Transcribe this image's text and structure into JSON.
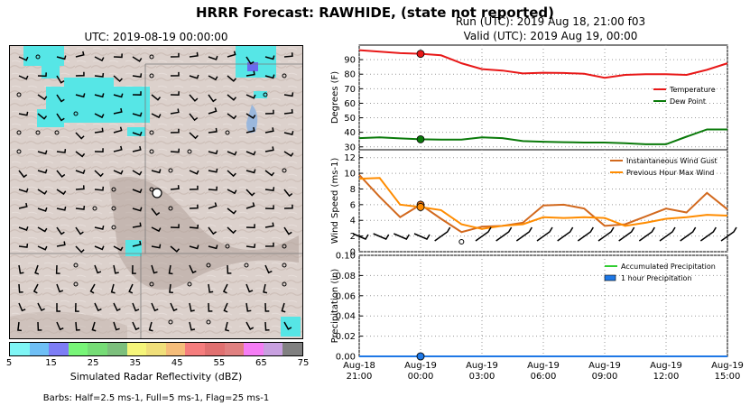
{
  "header": {
    "title": "HRRR Forecast: RAWHIDE, (state not reported)",
    "run": "Run (UTC): 2019 Aug 18, 21:00 f03",
    "valid": "Valid (UTC): 2019 Aug 19, 00:00"
  },
  "map": {
    "title": "UTC: 2019-08-19 00:00:00",
    "colorbar_label": "Simulated Radar Reflectivity (dBZ)",
    "colorbar_ticks": [
      "5",
      "15",
      "25",
      "35",
      "45",
      "55",
      "65",
      "75"
    ],
    "colorbar_colors": [
      "#7ff5f5",
      "#6fbff5",
      "#7d7df5",
      "#78f578",
      "#76dc76",
      "#7cbf7c",
      "#f5f57a",
      "#f0df7a",
      "#f5bd7a",
      "#f57d7d",
      "#e07070",
      "#e08080",
      "#f57df5",
      "#c8a0e0",
      "#808080"
    ],
    "barbs_note": "Barbs: Half=2.5 ms-1, Full=5 ms-1, Flag=25 ms-1"
  },
  "chart_data": [
    {
      "type": "line",
      "ylabel": "Degrees (F)",
      "ylim": [
        28,
        100
      ],
      "yticks": [
        30,
        40,
        50,
        60,
        70,
        80,
        90
      ],
      "grid": true,
      "legend": "right",
      "x": [
        "Aug-18 21:00",
        "22:00",
        "23:00",
        "Aug-19 00:00",
        "01:00",
        "02:00",
        "03:00",
        "04:00",
        "05:00",
        "06:00",
        "07:00",
        "08:00",
        "09:00",
        "10:00",
        "11:00",
        "12:00",
        "13:00",
        "14:00",
        "15:00"
      ],
      "series": [
        {
          "name": "Temperature",
          "color": "#e81818",
          "values": [
            96.5,
            95.5,
            94.5,
            94.0,
            93.0,
            87.5,
            83.5,
            82.5,
            80.5,
            81.0,
            80.8,
            80.3,
            77.5,
            79.5,
            80.0,
            80.0,
            79.5,
            83.0,
            87.5
          ]
        },
        {
          "name": "Dew Point",
          "color": "#0a7a0a",
          "values": [
            36.0,
            36.5,
            35.8,
            35.2,
            35.0,
            35.0,
            36.5,
            36.0,
            34.0,
            33.5,
            33.2,
            33.0,
            33.0,
            32.5,
            31.8,
            31.8,
            37.0,
            42.0,
            42.0
          ]
        }
      ],
      "marker_index": 3
    },
    {
      "type": "line",
      "ylabel": "Wind Speed (ms-1)",
      "ylim": [
        0,
        13
      ],
      "yticks": [
        0,
        2,
        4,
        6,
        8,
        10,
        12
      ],
      "grid": true,
      "legend": "top-right",
      "series": [
        {
          "name": "Instantaneous Wind Gust",
          "color": "#d2691e",
          "values": [
            9.8,
            7.0,
            4.4,
            6.0,
            4.2,
            2.5,
            3.2,
            3.3,
            3.7,
            5.9,
            6.0,
            5.5,
            3.3,
            3.5,
            4.5,
            5.5,
            5.0,
            7.5,
            5.4
          ]
        },
        {
          "name": "Previous Hour Max Wind",
          "color": "#ff8c00",
          "values": [
            9.3,
            9.4,
            6.0,
            5.7,
            5.3,
            3.5,
            2.9,
            3.3,
            3.5,
            4.4,
            4.3,
            4.4,
            4.3,
            3.3,
            3.7,
            4.2,
            4.4,
            4.7,
            4.6
          ]
        }
      ],
      "marker_index": 3
    },
    {
      "type": "line",
      "ylabel": "Precipitation (in)",
      "ylim": [
        0,
        0.1
      ],
      "yticks": [
        "0.00",
        "0.02",
        "0.04",
        "0.06",
        "0.08",
        "0.10"
      ],
      "grid": true,
      "legend": "top-right",
      "xticks": [
        [
          "Aug-18",
          "21:00"
        ],
        [
          "Aug-19",
          "00:00"
        ],
        [
          "Aug-19",
          "03:00"
        ],
        [
          "Aug-19",
          "06:00"
        ],
        [
          "Aug-19",
          "09:00"
        ],
        [
          "Aug-19",
          "12:00"
        ],
        [
          "Aug-19",
          "15:00"
        ]
      ],
      "series": [
        {
          "name": "Accumulated Precipitation",
          "color": "#32cd32",
          "values": [
            0,
            0,
            0,
            0,
            0,
            0,
            0,
            0,
            0,
            0,
            0,
            0,
            0,
            0,
            0,
            0,
            0,
            0,
            0
          ]
        },
        {
          "name": "1 hour Precipitation",
          "color": "#1e78e6",
          "values": [
            0,
            0,
            0,
            0,
            0,
            0,
            0,
            0,
            0,
            0,
            0,
            0,
            0,
            0,
            0,
            0,
            0,
            0,
            0
          ]
        }
      ],
      "marker_index": 3
    }
  ]
}
